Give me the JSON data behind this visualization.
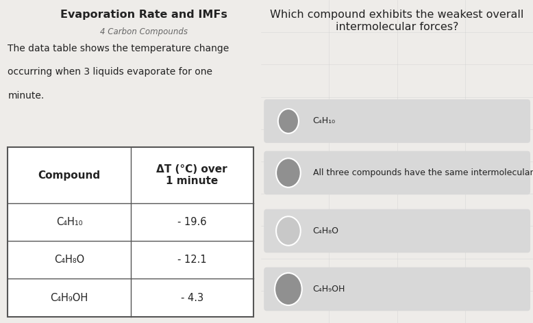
{
  "title": "Evaporation Rate and IMFs",
  "subtitle": "4 Carbon Compounds",
  "description_lines": [
    "The data table shows the temperature change",
    "occurring when 3 liquids evaporate for one",
    "minute."
  ],
  "table_header_left": "Compound",
  "table_header_right": "ΔT (°C) over\n1 minute",
  "table_rows": [
    [
      "C₄H₁₀",
      "- 19.6"
    ],
    [
      "C₄H₈O",
      "- 12.1"
    ],
    [
      "C₄H₉OH",
      "- 4.3"
    ]
  ],
  "question": "Which compound exhibits the weakest overall\nintermolecular forces?",
  "choices": [
    "C₄H₁₀",
    "All three compounds have the same intermolecular forces.",
    "C₄H₈O",
    "C₄H₉OH"
  ],
  "bg_left": "#eeece9",
  "bg_right": "#e2e2e2",
  "choice_bg": "#d8d8d8",
  "table_border": "#555555",
  "table_bg": "#ffffff",
  "text_color": "#222222",
  "subtitle_color": "#666666",
  "grid_color": "#c8c8c8",
  "circle_border": "#999999",
  "circle_fill_dark": "#909090",
  "circle_fill_light": "#c8c8c8"
}
